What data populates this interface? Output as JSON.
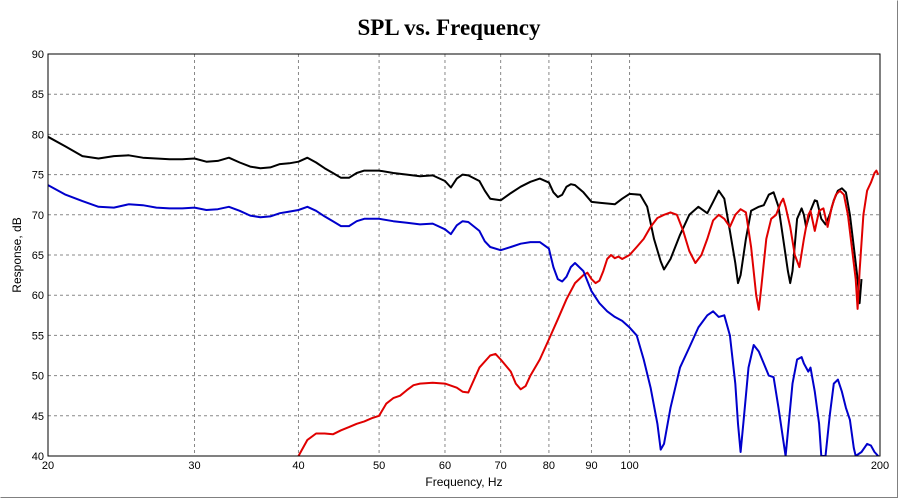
{
  "chart_data": {
    "type": "line",
    "title": "SPL vs. Frequency",
    "xlabel": "Frequency, Hz",
    "ylabel": "Response, dB",
    "xscale": "log",
    "xlim": [
      20,
      200
    ],
    "ylim": [
      40,
      90
    ],
    "grid": true,
    "legend": "none",
    "x_ticks": [
      "20",
      "30",
      "40",
      "50",
      "60",
      "70",
      "80",
      "90",
      "100",
      "200"
    ],
    "y_ticks": [
      "40",
      "45",
      "50",
      "55",
      "60",
      "65",
      "70",
      "75",
      "80",
      "85",
      "90"
    ],
    "series": [
      {
        "color": "#000000",
        "points": [
          [
            20,
            79.7
          ],
          [
            21,
            78.5
          ],
          [
            22,
            77.3
          ],
          [
            23,
            77
          ],
          [
            24,
            77.3
          ],
          [
            25,
            77.4
          ],
          [
            26,
            77.1
          ],
          [
            27,
            77
          ],
          [
            28,
            76.9
          ],
          [
            29,
            76.9
          ],
          [
            30,
            77
          ],
          [
            31,
            76.6
          ],
          [
            32,
            76.7
          ],
          [
            33,
            77.1
          ],
          [
            34,
            76.5
          ],
          [
            35,
            76
          ],
          [
            36,
            75.8
          ],
          [
            37,
            75.9
          ],
          [
            38,
            76.3
          ],
          [
            39,
            76.4
          ],
          [
            40,
            76.6
          ],
          [
            41,
            77.1
          ],
          [
            42,
            76.5
          ],
          [
            43,
            75.8
          ],
          [
            44,
            75.2
          ],
          [
            45,
            74.6
          ],
          [
            46,
            74.6
          ],
          [
            47,
            75.2
          ],
          [
            48,
            75.5
          ],
          [
            50,
            75.5
          ],
          [
            52,
            75.2
          ],
          [
            54,
            75
          ],
          [
            56,
            74.8
          ],
          [
            58,
            74.9
          ],
          [
            60,
            74.2
          ],
          [
            61,
            73.4
          ],
          [
            62,
            74.5
          ],
          [
            63,
            75
          ],
          [
            64,
            74.9
          ],
          [
            66,
            74.2
          ],
          [
            67,
            73
          ],
          [
            68,
            72
          ],
          [
            70,
            71.8
          ],
          [
            72,
            72.7
          ],
          [
            74,
            73.5
          ],
          [
            76,
            74.1
          ],
          [
            78,
            74.5
          ],
          [
            80,
            74
          ],
          [
            81,
            72.8
          ],
          [
            82,
            72.2
          ],
          [
            83,
            72.5
          ],
          [
            84,
            73.5
          ],
          [
            85,
            73.8
          ],
          [
            86,
            73.7
          ],
          [
            88,
            72.8
          ],
          [
            90,
            71.6
          ],
          [
            92,
            71.5
          ],
          [
            94,
            71.4
          ],
          [
            96,
            71.3
          ],
          [
            98,
            72
          ],
          [
            100,
            72.6
          ],
          [
            103,
            72.5
          ],
          [
            105,
            71
          ],
          [
            107,
            67
          ],
          [
            109,
            64.2
          ],
          [
            110,
            63.2
          ],
          [
            112,
            64.5
          ],
          [
            115,
            67.5
          ],
          [
            118,
            70
          ],
          [
            121,
            71
          ],
          [
            124,
            70.2
          ],
          [
            126,
            71.6
          ],
          [
            128,
            73
          ],
          [
            130,
            72
          ],
          [
            132,
            68
          ],
          [
            134,
            64
          ],
          [
            135,
            61.5
          ],
          [
            136,
            62.5
          ],
          [
            138,
            67
          ],
          [
            140,
            70.5
          ],
          [
            143,
            71
          ],
          [
            145,
            71.2
          ],
          [
            147,
            72.5
          ],
          [
            149,
            72.8
          ],
          [
            151,
            71
          ],
          [
            153,
            67
          ],
          [
            155,
            63
          ],
          [
            156,
            61.5
          ],
          [
            157,
            63
          ],
          [
            159,
            69.5
          ],
          [
            161,
            70.8
          ],
          [
            162,
            70
          ],
          [
            163,
            68.5
          ],
          [
            165,
            70.5
          ],
          [
            167,
            71.8
          ],
          [
            168,
            71.7
          ],
          [
            170,
            69.5
          ],
          [
            172,
            68.8
          ],
          [
            174,
            70
          ],
          [
            176,
            71.8
          ],
          [
            178,
            73
          ],
          [
            180,
            73.3
          ],
          [
            182,
            72.8
          ],
          [
            184,
            70
          ],
          [
            186,
            66
          ],
          [
            188,
            62
          ],
          [
            189,
            59
          ],
          [
            190,
            62
          ]
        ]
      },
      {
        "color": "#e00000",
        "points": [
          [
            40,
            40
          ],
          [
            41,
            42
          ],
          [
            42,
            42.8
          ],
          [
            43,
            42.8
          ],
          [
            44,
            42.7
          ],
          [
            45,
            43.2
          ],
          [
            46,
            43.6
          ],
          [
            47,
            44
          ],
          [
            48,
            44.3
          ],
          [
            49,
            44.7
          ],
          [
            50,
            45
          ],
          [
            51,
            46.5
          ],
          [
            52,
            47.2
          ],
          [
            53,
            47.5
          ],
          [
            54,
            48.2
          ],
          [
            55,
            48.8
          ],
          [
            56,
            49
          ],
          [
            58,
            49.1
          ],
          [
            60,
            49
          ],
          [
            62,
            48.5
          ],
          [
            63,
            48
          ],
          [
            64,
            47.9
          ],
          [
            66,
            51
          ],
          [
            68,
            52.5
          ],
          [
            69,
            52.7
          ],
          [
            70,
            52
          ],
          [
            72,
            50.5
          ],
          [
            73,
            49
          ],
          [
            74,
            48.3
          ],
          [
            75,
            48.7
          ],
          [
            76,
            50
          ],
          [
            78,
            52
          ],
          [
            80,
            54.5
          ],
          [
            82,
            57
          ],
          [
            84,
            59.5
          ],
          [
            86,
            61.5
          ],
          [
            88,
            62.5
          ],
          [
            89,
            62.8
          ],
          [
            90,
            62
          ],
          [
            91,
            61.5
          ],
          [
            92,
            61.8
          ],
          [
            93,
            63
          ],
          [
            94,
            64.5
          ],
          [
            95,
            65
          ],
          [
            96,
            64.6
          ],
          [
            97,
            64.8
          ],
          [
            98,
            64.5
          ],
          [
            100,
            65
          ],
          [
            102,
            66
          ],
          [
            104,
            67
          ],
          [
            106,
            68.5
          ],
          [
            108,
            69.6
          ],
          [
            110,
            70
          ],
          [
            112,
            70.3
          ],
          [
            114,
            70
          ],
          [
            116,
            68
          ],
          [
            118,
            65.5
          ],
          [
            120,
            64
          ],
          [
            122,
            65
          ],
          [
            124,
            67
          ],
          [
            126,
            69.3
          ],
          [
            128,
            70
          ],
          [
            130,
            69.5
          ],
          [
            132,
            68.5
          ],
          [
            134,
            70
          ],
          [
            136,
            70.7
          ],
          [
            138,
            70.3
          ],
          [
            140,
            66
          ],
          [
            142,
            60
          ],
          [
            143,
            58.2
          ],
          [
            144,
            61
          ],
          [
            146,
            67
          ],
          [
            148,
            69.5
          ],
          [
            150,
            70
          ],
          [
            152,
            71.5
          ],
          [
            153,
            72
          ],
          [
            154,
            71
          ],
          [
            156,
            68.5
          ],
          [
            158,
            65
          ],
          [
            160,
            63.5
          ],
          [
            162,
            67
          ],
          [
            164,
            70
          ],
          [
            165,
            70.5
          ],
          [
            167,
            68
          ],
          [
            169,
            70.5
          ],
          [
            171,
            70.8
          ],
          [
            173,
            68.5
          ],
          [
            175,
            71
          ],
          [
            177,
            72.5
          ],
          [
            179,
            73
          ],
          [
            181,
            72.5
          ],
          [
            183,
            70
          ],
          [
            185,
            66
          ],
          [
            187,
            62
          ],
          [
            188,
            58.3
          ],
          [
            189,
            63
          ],
          [
            191,
            70
          ],
          [
            193,
            73
          ],
          [
            195,
            74
          ],
          [
            197,
            75.2
          ],
          [
            198,
            75.5
          ],
          [
            199,
            75
          ]
        ]
      },
      {
        "color": "#0000cc",
        "points": [
          [
            20,
            73.7
          ],
          [
            21,
            72.5
          ],
          [
            22,
            71.7
          ],
          [
            23,
            71
          ],
          [
            24,
            70.9
          ],
          [
            25,
            71.3
          ],
          [
            26,
            71.2
          ],
          [
            27,
            70.9
          ],
          [
            28,
            70.8
          ],
          [
            29,
            70.8
          ],
          [
            30,
            70.9
          ],
          [
            31,
            70.6
          ],
          [
            32,
            70.7
          ],
          [
            33,
            71
          ],
          [
            34,
            70.5
          ],
          [
            35,
            69.9
          ],
          [
            36,
            69.7
          ],
          [
            37,
            69.8
          ],
          [
            38,
            70.2
          ],
          [
            39,
            70.4
          ],
          [
            40,
            70.6
          ],
          [
            41,
            71
          ],
          [
            42,
            70.5
          ],
          [
            43,
            69.8
          ],
          [
            44,
            69.2
          ],
          [
            45,
            68.6
          ],
          [
            46,
            68.6
          ],
          [
            47,
            69.2
          ],
          [
            48,
            69.5
          ],
          [
            50,
            69.5
          ],
          [
            52,
            69.2
          ],
          [
            54,
            69
          ],
          [
            56,
            68.8
          ],
          [
            58,
            68.9
          ],
          [
            60,
            68.2
          ],
          [
            61,
            67.6
          ],
          [
            62,
            68.7
          ],
          [
            63,
            69.2
          ],
          [
            64,
            69.1
          ],
          [
            66,
            68
          ],
          [
            67,
            66.7
          ],
          [
            68,
            66
          ],
          [
            70,
            65.6
          ],
          [
            72,
            66
          ],
          [
            74,
            66.4
          ],
          [
            76,
            66.6
          ],
          [
            78,
            66.6
          ],
          [
            80,
            65.8
          ],
          [
            81,
            63.5
          ],
          [
            82,
            62
          ],
          [
            83,
            61.7
          ],
          [
            84,
            62.3
          ],
          [
            85,
            63.5
          ],
          [
            86,
            64
          ],
          [
            88,
            63
          ],
          [
            90,
            60.5
          ],
          [
            92,
            59
          ],
          [
            94,
            58
          ],
          [
            96,
            57.3
          ],
          [
            98,
            56.8
          ],
          [
            100,
            56
          ],
          [
            102,
            55
          ],
          [
            104,
            52
          ],
          [
            106,
            48.5
          ],
          [
            108,
            44
          ],
          [
            109,
            40.8
          ],
          [
            110,
            41.5
          ],
          [
            112,
            46
          ],
          [
            115,
            51
          ],
          [
            118,
            53.5
          ],
          [
            121,
            56
          ],
          [
            124,
            57.5
          ],
          [
            126,
            58
          ],
          [
            128,
            57.3
          ],
          [
            130,
            57.5
          ],
          [
            132,
            55
          ],
          [
            134,
            49
          ],
          [
            135,
            44
          ],
          [
            136,
            40.5
          ],
          [
            137,
            44
          ],
          [
            139,
            51
          ],
          [
            141,
            53.8
          ],
          [
            143,
            53
          ],
          [
            145,
            51.5
          ],
          [
            147,
            50
          ],
          [
            149,
            49.8
          ],
          [
            151,
            46
          ],
          [
            153,
            42
          ],
          [
            154,
            40
          ],
          [
            155,
            43
          ],
          [
            157,
            49
          ],
          [
            159,
            52
          ],
          [
            161,
            52.3
          ],
          [
            162,
            51.5
          ],
          [
            164,
            50.5
          ],
          [
            165,
            51
          ],
          [
            167,
            48
          ],
          [
            169,
            44
          ],
          [
            170,
            40
          ],
          [
            172,
            40
          ],
          [
            174,
            45
          ],
          [
            176,
            49
          ],
          [
            178,
            49.5
          ],
          [
            180,
            48
          ],
          [
            182,
            46
          ],
          [
            184,
            44.5
          ],
          [
            186,
            41
          ],
          [
            187,
            40
          ],
          [
            190,
            40.5
          ],
          [
            193,
            41.5
          ],
          [
            195,
            41.3
          ],
          [
            197,
            40.5
          ],
          [
            199,
            40
          ]
        ]
      }
    ]
  }
}
